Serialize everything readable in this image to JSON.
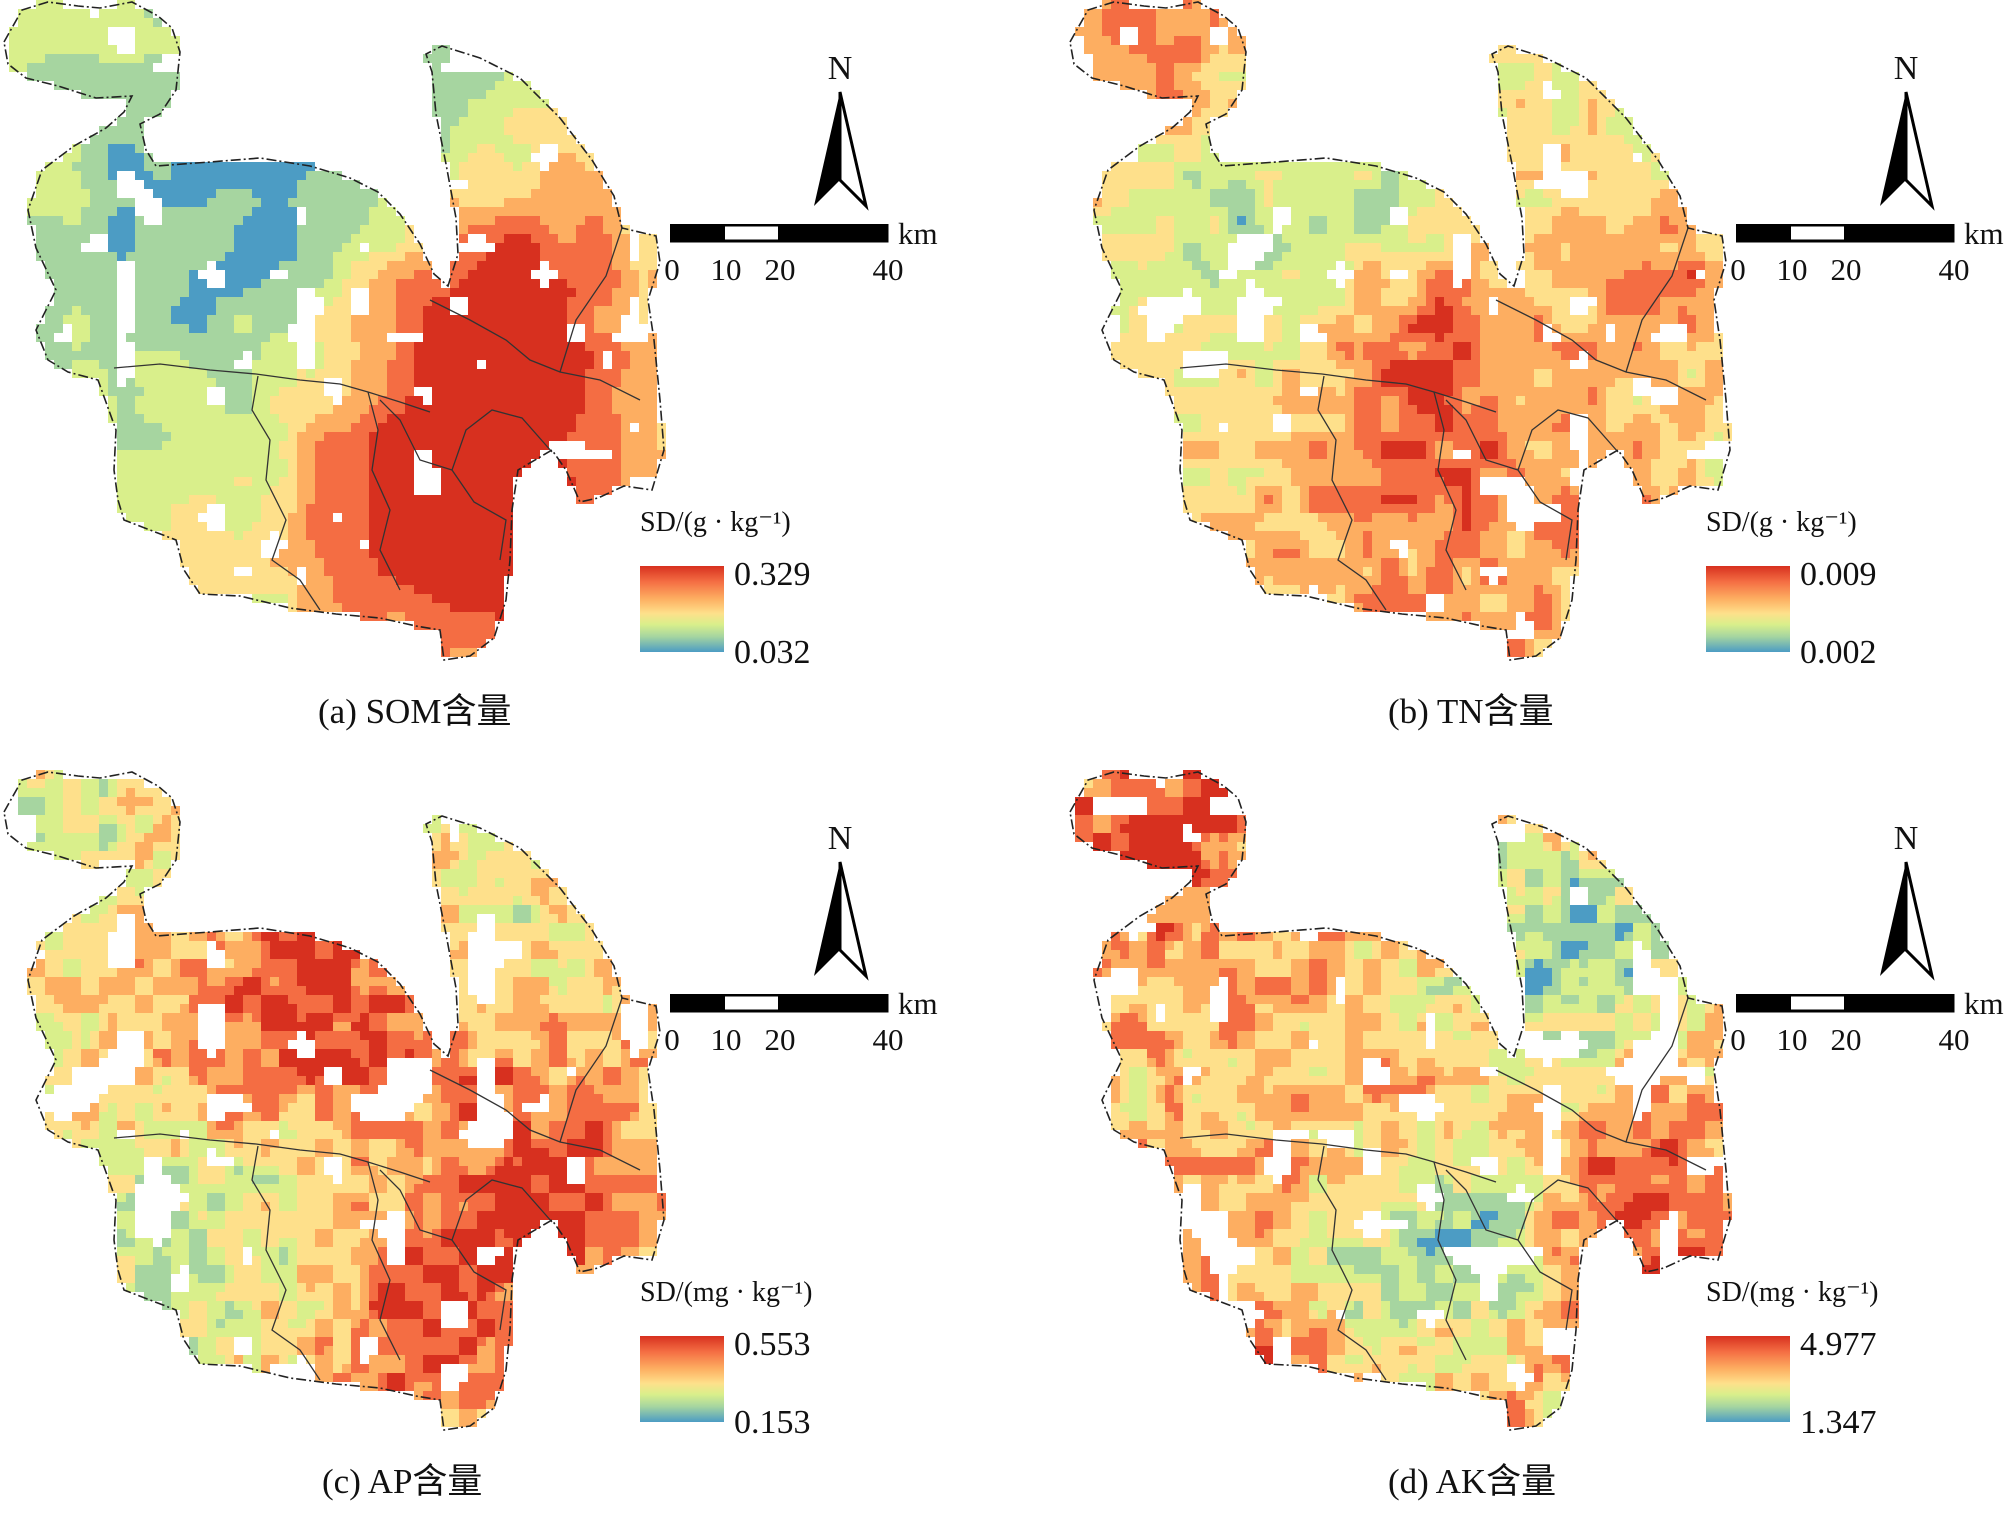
{
  "panels": [
    {
      "id": "a",
      "caption": "(a) SOM含量",
      "north_label": "N",
      "scale": {
        "unit": "km",
        "ticks": [
          "0",
          "10",
          "20",
          "40"
        ]
      },
      "legend": {
        "title": "SD/(g · kg⁻¹)",
        "max": "0.329",
        "min": "0.032"
      },
      "pattern": "som"
    },
    {
      "id": "b",
      "caption": "(b) TN含量",
      "north_label": "N",
      "scale": {
        "unit": "km",
        "ticks": [
          "0",
          "10",
          "20",
          "40"
        ]
      },
      "legend": {
        "title": "SD/(g · kg⁻¹)",
        "max": "0.009",
        "min": "0.002"
      },
      "pattern": "tn"
    },
    {
      "id": "c",
      "caption": "(c) AP含量",
      "north_label": "N",
      "scale": {
        "unit": "km",
        "ticks": [
          "0",
          "10",
          "20",
          "40"
        ]
      },
      "legend": {
        "title": "SD/(mg · kg⁻¹)",
        "max": "0.553",
        "min": "0.153"
      },
      "pattern": "ap"
    },
    {
      "id": "d",
      "caption": "(d) AK含量",
      "north_label": "N",
      "scale": {
        "unit": "km",
        "ticks": [
          "0",
          "10",
          "20",
          "40"
        ]
      },
      "legend": {
        "title": "SD/(mg · kg⁻¹)",
        "max": "4.977",
        "min": "1.347"
      },
      "pattern": "ak"
    }
  ],
  "colors": {
    "ramp": [
      "#4c9cc4",
      "#a6d5a0",
      "#d9ef8b",
      "#fee08b",
      "#fdae61",
      "#f46d43",
      "#d7301f"
    ],
    "outline": "#222222"
  }
}
